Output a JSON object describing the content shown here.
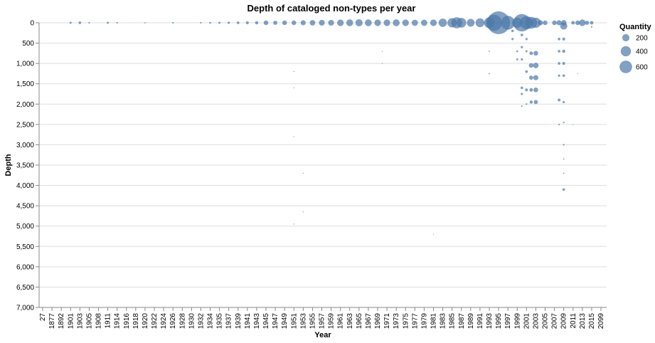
{
  "chart_data": {
    "type": "scatter",
    "title": "Depth of cataloged non-types per year",
    "xlabel": "Year",
    "ylabel": "Depth",
    "y_reversed": true,
    "ylim": [
      0,
      7000
    ],
    "y_ticks": [
      0,
      500,
      1000,
      1500,
      2000,
      2500,
      3000,
      3500,
      4000,
      4500,
      5000,
      5500,
      6000,
      6500,
      7000
    ],
    "y_tick_labels": [
      "0",
      "500",
      "1,000",
      "1,500",
      "2,000",
      "2,500",
      "3,000",
      "3,500",
      "4,000",
      "4,500",
      "5,000",
      "5,500",
      "6,000",
      "6,500",
      "7,000"
    ],
    "x_categories": [
      "27",
      "1877",
      "1892",
      "1901",
      "1903",
      "1905",
      "1908",
      "1911",
      "1914",
      "1916",
      "1918",
      "1920",
      "1922",
      "1924",
      "1926",
      "1928",
      "1930",
      "1932",
      "1934",
      "1935",
      "1937",
      "1939",
      "1941",
      "1943",
      "1945",
      "1947",
      "1949",
      "1951",
      "1953",
      "1955",
      "1957",
      "1959",
      "1961",
      "1963",
      "1965",
      "1967",
      "1969",
      "1971",
      "1973",
      "1975",
      "1977",
      "1979",
      "1981",
      "1983",
      "1985",
      "1987",
      "1989",
      "1991",
      "1993",
      "1995",
      "1997",
      "1999",
      "2001",
      "2003",
      "2005",
      "2007",
      "2009",
      "2011",
      "2013",
      "2015",
      "2099"
    ],
    "grid": "horizontal",
    "color": "#4c78a8",
    "legend": {
      "title": "Quantity",
      "position": "right",
      "entries": [
        {
          "label": "200",
          "value": 200
        },
        {
          "label": "400",
          "value": 400
        },
        {
          "label": "600",
          "value": 600
        }
      ]
    },
    "points": [
      {
        "x": "1901",
        "y": 0,
        "size": 5
      },
      {
        "x": "1903",
        "y": 0,
        "size": 8
      },
      {
        "x": "1905",
        "y": 0,
        "size": 3
      },
      {
        "x": "1911",
        "y": 0,
        "size": 5
      },
      {
        "x": "1914",
        "y": 0,
        "size": 3
      },
      {
        "x": "1920",
        "y": 0,
        "size": 2
      },
      {
        "x": "1926",
        "y": 0,
        "size": 3
      },
      {
        "x": "1932",
        "y": 0,
        "size": 3
      },
      {
        "x": "1934",
        "y": 0,
        "size": 4
      },
      {
        "x": "1935",
        "y": 0,
        "size": 5
      },
      {
        "x": "1937",
        "y": 0,
        "size": 6
      },
      {
        "x": "1939",
        "y": 0,
        "size": 8
      },
      {
        "x": "1941",
        "y": 0,
        "size": 10
      },
      {
        "x": "1943",
        "y": 0,
        "size": 12
      },
      {
        "x": "1945",
        "y": 0,
        "size": 25
      },
      {
        "x": "1947",
        "y": 0,
        "size": 20
      },
      {
        "x": "1949",
        "y": 0,
        "size": 25
      },
      {
        "x": "1951",
        "y": 0,
        "size": 25
      },
      {
        "x": "1951",
        "y": 1200,
        "size": 1
      },
      {
        "x": "1951",
        "y": 1600,
        "size": 1
      },
      {
        "x": "1951",
        "y": 2800,
        "size": 1
      },
      {
        "x": "1951",
        "y": 4950,
        "size": 1
      },
      {
        "x": "1953",
        "y": 0,
        "size": 30
      },
      {
        "x": "1953",
        "y": 3700,
        "size": 1
      },
      {
        "x": "1953",
        "y": 4650,
        "size": 1
      },
      {
        "x": "1955",
        "y": 0,
        "size": 35
      },
      {
        "x": "1957",
        "y": 0,
        "size": 40
      },
      {
        "x": "1959",
        "y": 0,
        "size": 40
      },
      {
        "x": "1961",
        "y": 0,
        "size": 50
      },
      {
        "x": "1963",
        "y": 0,
        "size": 55
      },
      {
        "x": "1965",
        "y": 0,
        "size": 60
      },
      {
        "x": "1967",
        "y": 0,
        "size": 55
      },
      {
        "x": "1969",
        "y": 0,
        "size": 50
      },
      {
        "x": "1970",
        "y": 700,
        "size": 1
      },
      {
        "x": "1970",
        "y": 1000,
        "size": 1
      },
      {
        "x": "1971",
        "y": 0,
        "size": 50
      },
      {
        "x": "1973",
        "y": 0,
        "size": 55
      },
      {
        "x": "1975",
        "y": 0,
        "size": 50
      },
      {
        "x": "1977",
        "y": 0,
        "size": 45
      },
      {
        "x": "1979",
        "y": 0,
        "size": 45
      },
      {
        "x": "1981",
        "y": 0,
        "size": 50
      },
      {
        "x": "1981",
        "y": 5200,
        "size": 1
      },
      {
        "x": "1983",
        "y": 0,
        "size": 80
      },
      {
        "x": "1985",
        "y": 0,
        "size": 100
      },
      {
        "x": "1986",
        "y": 0,
        "size": 140
      },
      {
        "x": "1987",
        "y": 0,
        "size": 110
      },
      {
        "x": "1989",
        "y": 0,
        "size": 70
      },
      {
        "x": "1991",
        "y": 0,
        "size": 90
      },
      {
        "x": "1993",
        "y": 0,
        "size": 130
      },
      {
        "x": "1993",
        "y": 700,
        "size": 2
      },
      {
        "x": "1993",
        "y": 1250,
        "size": 2
      },
      {
        "x": "1994",
        "y": 0,
        "size": 300
      },
      {
        "x": "1995",
        "y": 0,
        "size": 600
      },
      {
        "x": "1997",
        "y": 0,
        "size": 220
      },
      {
        "x": "1998",
        "y": 200,
        "size": 8
      },
      {
        "x": "1998",
        "y": 400,
        "size": 6
      },
      {
        "x": "1999",
        "y": 0,
        "size": 120
      },
      {
        "x": "1999",
        "y": 700,
        "size": 4
      },
      {
        "x": "1999",
        "y": 900,
        "size": 5
      },
      {
        "x": "2000",
        "y": 0,
        "size": 350
      },
      {
        "x": "2000",
        "y": 300,
        "size": 8
      },
      {
        "x": "2000",
        "y": 600,
        "size": 6
      },
      {
        "x": "2000",
        "y": 900,
        "size": 6
      },
      {
        "x": "2000",
        "y": 1600,
        "size": 8
      },
      {
        "x": "2000",
        "y": 1750,
        "size": 6
      },
      {
        "x": "2000",
        "y": 2050,
        "size": 3
      },
      {
        "x": "2001",
        "y": 0,
        "size": 200
      },
      {
        "x": "2001",
        "y": 400,
        "size": 6
      },
      {
        "x": "2001",
        "y": 700,
        "size": 5
      },
      {
        "x": "2001",
        "y": 1200,
        "size": 8
      },
      {
        "x": "2001",
        "y": 1650,
        "size": 10
      },
      {
        "x": "2001",
        "y": 2000,
        "size": 3
      },
      {
        "x": "2002",
        "y": 0,
        "size": 160
      },
      {
        "x": "2002",
        "y": 750,
        "size": 15
      },
      {
        "x": "2002",
        "y": 1050,
        "size": 25
      },
      {
        "x": "2002",
        "y": 1350,
        "size": 20
      },
      {
        "x": "2002",
        "y": 1650,
        "size": 15
      },
      {
        "x": "2002",
        "y": 1950,
        "size": 12
      },
      {
        "x": "2003",
        "y": 0,
        "size": 120
      },
      {
        "x": "2003",
        "y": 750,
        "size": 25
      },
      {
        "x": "2003",
        "y": 1050,
        "size": 35
      },
      {
        "x": "2003",
        "y": 1350,
        "size": 30
      },
      {
        "x": "2003",
        "y": 1650,
        "size": 25
      },
      {
        "x": "2003",
        "y": 1950,
        "size": 20
      },
      {
        "x": "2004",
        "y": 0,
        "size": 30
      },
      {
        "x": "2005",
        "y": 0,
        "size": 25
      },
      {
        "x": "2007",
        "y": 0,
        "size": 25
      },
      {
        "x": "2008",
        "y": 0,
        "size": 30
      },
      {
        "x": "2008",
        "y": 400,
        "size": 8
      },
      {
        "x": "2008",
        "y": 700,
        "size": 8
      },
      {
        "x": "2008",
        "y": 1000,
        "size": 8
      },
      {
        "x": "2008",
        "y": 1300,
        "size": 6
      },
      {
        "x": "2008",
        "y": 1900,
        "size": 10
      },
      {
        "x": "2008",
        "y": 2500,
        "size": 3
      },
      {
        "x": "2009",
        "y": 0,
        "size": 35
      },
      {
        "x": "2009",
        "y": 80,
        "size": 60
      },
      {
        "x": "2009",
        "y": 400,
        "size": 10
      },
      {
        "x": "2009",
        "y": 700,
        "size": 12
      },
      {
        "x": "2009",
        "y": 1000,
        "size": 10
      },
      {
        "x": "2009",
        "y": 1300,
        "size": 8
      },
      {
        "x": "2009",
        "y": 1950,
        "size": 6
      },
      {
        "x": "2009",
        "y": 2450,
        "size": 3
      },
      {
        "x": "2009",
        "y": 3000,
        "size": 3
      },
      {
        "x": "2009",
        "y": 3350,
        "size": 2
      },
      {
        "x": "2009",
        "y": 3700,
        "size": 2
      },
      {
        "x": "2009",
        "y": 4100,
        "size": 8
      },
      {
        "x": "2011",
        "y": 0,
        "size": 15
      },
      {
        "x": "2011",
        "y": 2500,
        "size": 1
      },
      {
        "x": "2012",
        "y": 0,
        "size": 25
      },
      {
        "x": "2012",
        "y": 1250,
        "size": 1
      },
      {
        "x": "2013",
        "y": 0,
        "size": 50
      },
      {
        "x": "2014",
        "y": 0,
        "size": 20
      },
      {
        "x": "2015",
        "y": 0,
        "size": 15
      },
      {
        "x": "2015",
        "y": 100,
        "size": 3
      }
    ]
  }
}
